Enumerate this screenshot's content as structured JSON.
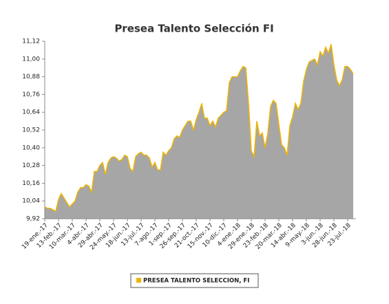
{
  "chart_data": {
    "type": "area",
    "title": "Presea Talento Selección FI",
    "categories": [
      "19-ene.-17",
      null,
      null,
      null,
      null,
      "13-feb.-17",
      null,
      null,
      null,
      null,
      "10-mar.-17",
      null,
      null,
      null,
      null,
      "4-abr.-17",
      null,
      null,
      null,
      null,
      "29-abr.-17",
      null,
      null,
      null,
      null,
      "24-may.-17",
      null,
      null,
      null,
      null,
      "18-jun.-17",
      null,
      null,
      null,
      null,
      "13-jul.-17",
      null,
      null,
      null,
      null,
      "7-ago.-17",
      null,
      null,
      null,
      null,
      "1-sep.-17",
      null,
      null,
      null,
      null,
      "26-sep.-17",
      null,
      null,
      null,
      null,
      "21-oct.-17",
      null,
      null,
      null,
      null,
      "15-nov.-17",
      null,
      null,
      null,
      null,
      "10-dic.-17",
      null,
      null,
      null,
      null,
      "4-ene.-18",
      null,
      null,
      null,
      null,
      "29-ene.-18",
      null,
      null,
      null,
      null,
      "23-feb.-18",
      null,
      null,
      null,
      null,
      "20-mar.-18",
      null,
      null,
      null,
      null,
      "14-abr.-18",
      null,
      null,
      null,
      null,
      "9-may.-18",
      null,
      null,
      null,
      null,
      "3-jun.-18",
      null,
      null,
      null,
      null,
      "28-jun.-18",
      null,
      null,
      null,
      null,
      "23-jul.-18",
      null,
      null
    ],
    "series": [
      {
        "name": "PRESEA TALENTO SELECCION, FI",
        "color": "#f0b400",
        "fill": "#a6a6a6",
        "values": [
          10.0,
          9.99,
          9.99,
          9.98,
          9.97,
          10.05,
          10.09,
          10.06,
          10.03,
          10.0,
          10.02,
          10.04,
          10.1,
          10.13,
          10.13,
          10.15,
          10.14,
          10.1,
          10.24,
          10.24,
          10.28,
          10.3,
          10.22,
          10.3,
          10.33,
          10.34,
          10.33,
          10.31,
          10.32,
          10.35,
          10.34,
          10.26,
          10.24,
          10.34,
          10.36,
          10.37,
          10.35,
          10.35,
          10.33,
          10.27,
          10.3,
          10.25,
          10.25,
          10.37,
          10.35,
          10.38,
          10.4,
          10.46,
          10.48,
          10.47,
          10.52,
          10.55,
          10.58,
          10.58,
          10.52,
          10.59,
          10.64,
          10.7,
          10.6,
          10.6,
          10.55,
          10.58,
          10.54,
          10.6,
          10.62,
          10.64,
          10.65,
          10.84,
          10.88,
          10.88,
          10.88,
          10.92,
          10.95,
          10.94,
          10.7,
          10.38,
          10.34,
          10.58,
          10.48,
          10.5,
          10.4,
          10.5,
          10.68,
          10.72,
          10.7,
          10.56,
          10.42,
          10.4,
          10.35,
          10.55,
          10.61,
          10.7,
          10.66,
          10.7,
          10.85,
          10.93,
          10.98,
          10.99,
          11.0,
          10.96,
          11.05,
          11.02,
          11.08,
          11.04,
          11.1,
          10.96,
          10.86,
          10.82,
          10.86,
          10.95,
          10.95,
          10.93,
          10.9
        ]
      }
    ],
    "ylim": [
      9.92,
      11.12
    ],
    "yticks": [
      {
        "value": 9.92,
        "label": "9,92"
      },
      {
        "value": 10.04,
        "label": "10,04"
      },
      {
        "value": 10.16,
        "label": "10,16"
      },
      {
        "value": 10.28,
        "label": "10,28"
      },
      {
        "value": 10.4,
        "label": "10,40"
      },
      {
        "value": 10.52,
        "label": "10,52"
      },
      {
        "value": 10.64,
        "label": "10,64"
      },
      {
        "value": 10.76,
        "label": "10,76"
      },
      {
        "value": 10.88,
        "label": "10,88"
      },
      {
        "value": 11.0,
        "label": "11,00"
      },
      {
        "value": 11.12,
        "label": "11,12"
      }
    ],
    "grid": false,
    "legend": "bottom"
  }
}
